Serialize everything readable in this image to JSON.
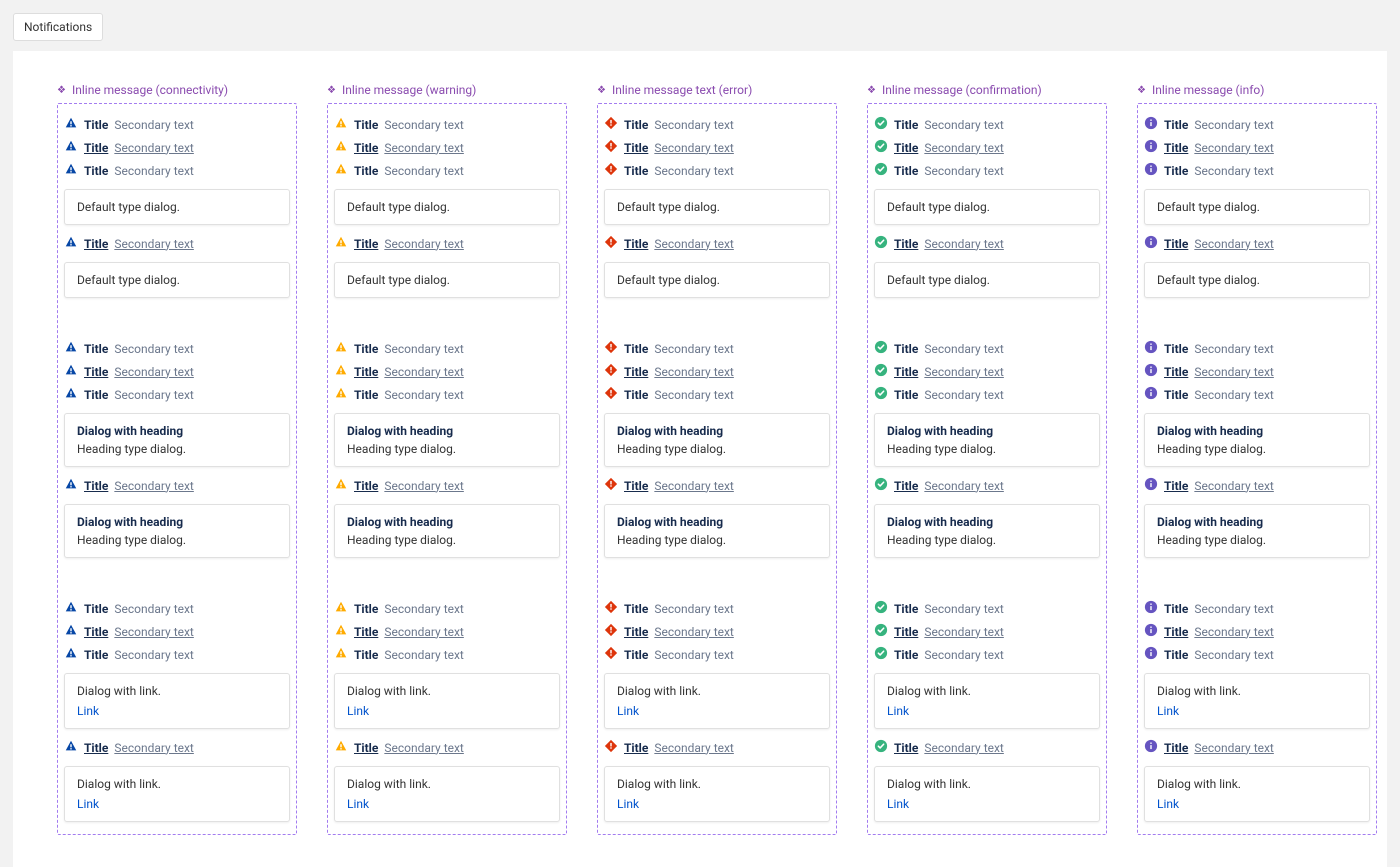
{
  "tabs": {
    "notifications": "Notifications"
  },
  "columns": [
    {
      "label": "Inline message (connectivity)",
      "type": "connectivity",
      "icon_fill": "#0747a6",
      "icon_shape": "triangle"
    },
    {
      "label": "Inline message (warning)",
      "type": "warning",
      "icon_fill": "#ffab00",
      "icon_shape": "triangle"
    },
    {
      "label": "Inline message text (error)",
      "type": "error",
      "icon_fill": "#de350b",
      "icon_shape": "diamond"
    },
    {
      "label": "Inline message (confirmation)",
      "type": "confirmation",
      "icon_fill": "#36b37e",
      "icon_shape": "check"
    },
    {
      "label": "Inline message (info)",
      "type": "info",
      "icon_fill": "#6554c0",
      "icon_shape": "info"
    }
  ],
  "text": {
    "title": "Title",
    "secondary": "Secondary text",
    "dialog_default": "Default type dialog.",
    "dialog_heading": "Dialog with heading",
    "dialog_heading_body": "Heading type dialog.",
    "dialog_link_body": "Dialog with link.",
    "link": "Link"
  },
  "header_color": "#8a4baf",
  "frame_border": "#a37cf0",
  "link_color": "#0052cc"
}
